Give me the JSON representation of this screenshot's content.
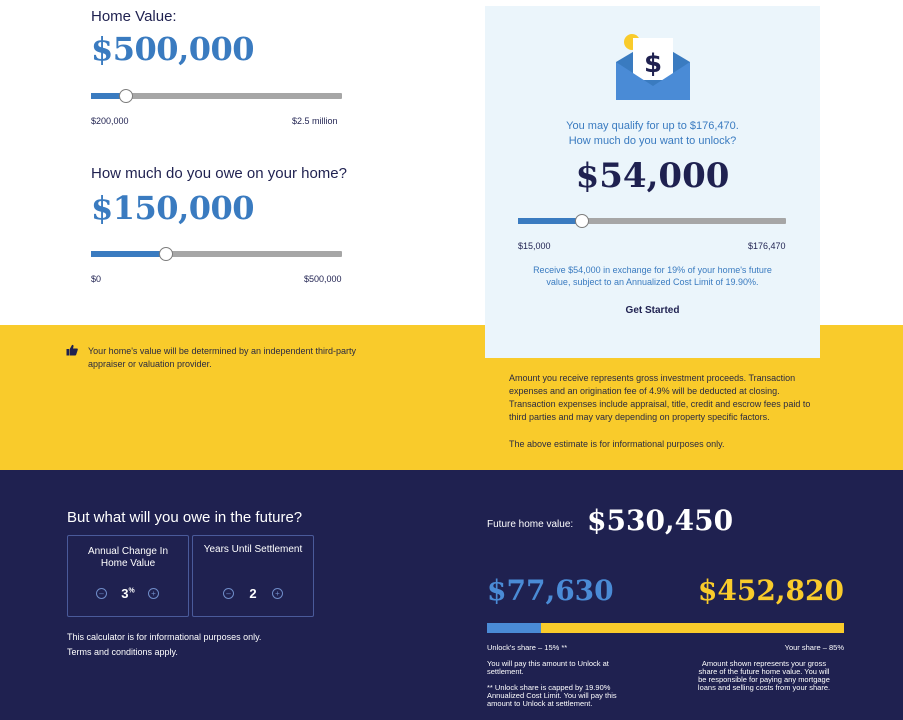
{
  "home_value": {
    "label": "Home Value:",
    "amount": "$500,000",
    "fraction": 0.14,
    "min_label": "$200,000",
    "max_label": "$2.5 million"
  },
  "owe": {
    "label": "How much do you owe on your home?",
    "amount": "$150,000",
    "fraction": 0.3,
    "min_label": "$0",
    "max_label": "$500,000"
  },
  "card": {
    "qualify_line1": "You may qualify for up to $176,470.",
    "qualify_line2": "How much do you want to unlock?",
    "amount": "$54,000",
    "fraction": 0.24,
    "min_label": "$15,000",
    "max_label": "$176,470",
    "note_line1": "Receive $54,000 in exchange for 19% of your home's future",
    "note_line2": "value, subject to an Annualized Cost Limit of 19.90%.",
    "button": "Get Started",
    "icon": "envelope-dollar-icon"
  },
  "yellow": {
    "appraisal_line1": "Your home's value will be determined by an independent third-party",
    "appraisal_line2": "appraiser or valuation provider.",
    "gross_line1": "Amount you receive represents gross investment proceeds. Transaction",
    "gross_line2": "expenses and an origination fee of 4.9% will be deducted at closing.",
    "gross_line3": "Transaction expenses include appraisal, title, credit and escrow fees paid to",
    "gross_line4": "third parties and may vary depending on property specific factors.",
    "estimate_note": "The above estimate is for informational purposes only.",
    "icon": "thumbs-up-icon"
  },
  "future": {
    "title": "But what will you owe in the future?",
    "annual_change_label_1": "Annual Change In",
    "annual_change_label_2": "Home Value",
    "annual_change_value": "3",
    "annual_change_unit": "%",
    "years_label": "Years Until Settlement",
    "years_value": "2",
    "note1": "This calculator is for informational purposes only.",
    "note2": "Terms and conditions apply.",
    "fhv_label": "Future home value:",
    "fhv_value": "$530,450",
    "unlock_amount": "$77,630",
    "your_amount": "$452,820",
    "unlock_share_fraction": 0.15,
    "unlock_share_label": "Unlock's share – 15% **",
    "your_share_label": "Your share – 85%",
    "unlock_note1": "You will pay this amount to Unlock at",
    "unlock_note2": "settlement.",
    "cap_note1": "** Unlock share is capped by 19.90%",
    "cap_note2": "Annualized Cost Limit. You will pay this",
    "cap_note3": "amount to Unlock at settlement.",
    "your_note1": "Amount shown represents your gross",
    "your_note2": "share of the future home value. You will",
    "your_note3": "be responsible for paying any mortgage",
    "your_note4": "loans and selling costs from your share."
  },
  "colors": {
    "navy": "#1f2150",
    "blue": "#3a7bc0",
    "yellow": "#f9cb2b",
    "card_bg": "#ebf5fb"
  }
}
